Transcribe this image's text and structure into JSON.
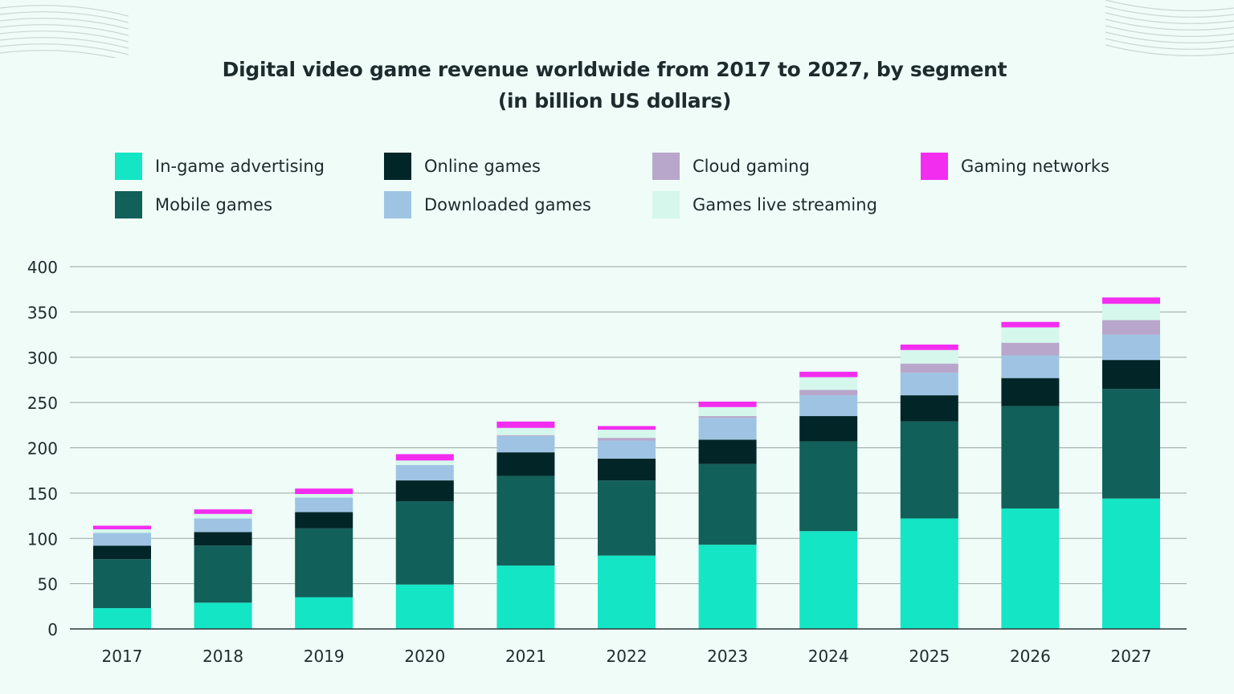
{
  "chart_data": {
    "type": "bar",
    "stacked": true,
    "title": "Digital video game revenue worldwide from 2017 to 2027, by segment",
    "subtitle": "(in billion US dollars)",
    "xlabel": "",
    "ylabel": "",
    "ylim": [
      0,
      400
    ],
    "yticks": [
      0,
      50,
      100,
      150,
      200,
      250,
      300,
      350,
      400
    ],
    "grid": true,
    "legend_position": "top",
    "categories": [
      "2017",
      "2018",
      "2019",
      "2020",
      "2021",
      "2022",
      "2023",
      "2024",
      "2025",
      "2026",
      "2027"
    ],
    "series": [
      {
        "name": "In-game advertising",
        "color": "#14e5c5",
        "values": [
          23,
          29,
          35,
          49,
          70,
          81,
          93,
          108,
          122,
          133,
          144
        ]
      },
      {
        "name": "Mobile games",
        "color": "#12605a",
        "values": [
          54,
          63,
          76,
          92,
          99,
          83,
          89,
          99,
          107,
          113,
          121
        ]
      },
      {
        "name": "Online games",
        "color": "#022628",
        "values": [
          15,
          15,
          18,
          23,
          26,
          24,
          27,
          28,
          29,
          31,
          32
        ]
      },
      {
        "name": "Downloaded games",
        "color": "#9fc4e3",
        "values": [
          14,
          15,
          16,
          17,
          18,
          20,
          24,
          23,
          25,
          25,
          28
        ]
      },
      {
        "name": "Cloud gaming",
        "color": "#b9a6cb",
        "values": [
          0,
          0,
          0,
          0,
          1,
          3,
          2,
          6,
          10,
          14,
          16
        ]
      },
      {
        "name": "Games live streaming",
        "color": "#d5f7ec",
        "values": [
          4,
          5,
          4,
          5,
          8,
          9,
          10,
          14,
          15,
          17,
          18
        ]
      },
      {
        "name": "Gaming networks",
        "color": "#f32df0",
        "values": [
          4,
          5,
          6,
          7,
          7,
          4,
          6,
          6,
          6,
          6,
          7
        ]
      }
    ]
  },
  "legend_order": [
    0,
    2,
    4,
    6,
    1,
    3,
    5
  ]
}
